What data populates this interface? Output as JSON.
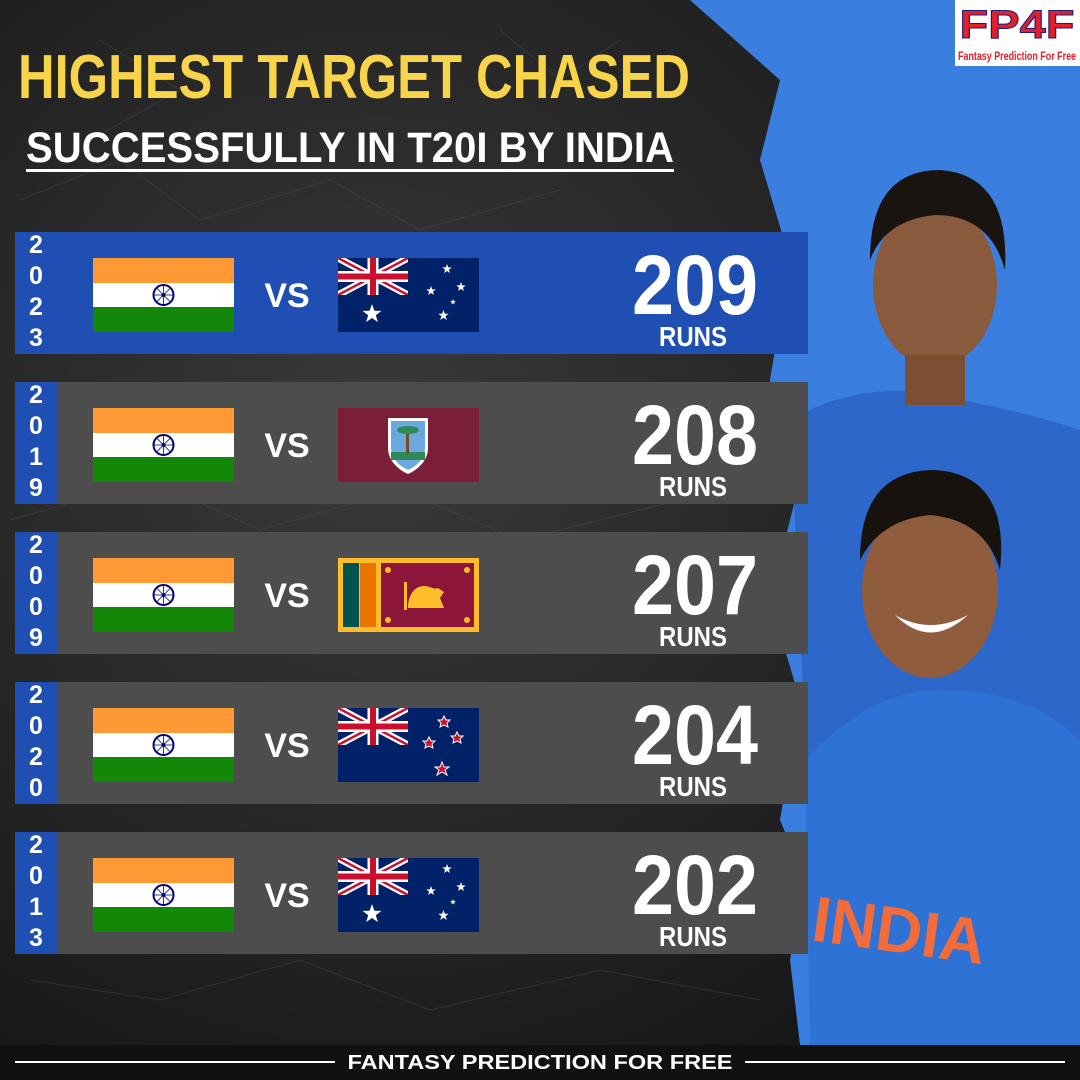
{
  "header": {
    "title": "HIGHEST TARGET CHASED",
    "subtitle": "SUCCESSFULLY IN T20I BY INDIA"
  },
  "logo": {
    "mark": "FP4F",
    "tagline": "Fantasy Prediction For Free"
  },
  "rows": [
    {
      "year": "2023",
      "vs": "VS",
      "runs": 209,
      "unit": "RUNS"
    },
    {
      "year": "2019",
      "vs": "VS",
      "runs": 208,
      "unit": "RUNS"
    },
    {
      "year": "2009",
      "vs": "VS",
      "runs": 207,
      "unit": "RUNS"
    },
    {
      "year": "2020",
      "vs": "VS",
      "runs": 204,
      "unit": "RUNS"
    },
    {
      "year": "2013",
      "vs": "VS",
      "runs": 202,
      "unit": "RUNS"
    }
  ],
  "footer": "FANTASY PREDICTION FOR FREE"
}
